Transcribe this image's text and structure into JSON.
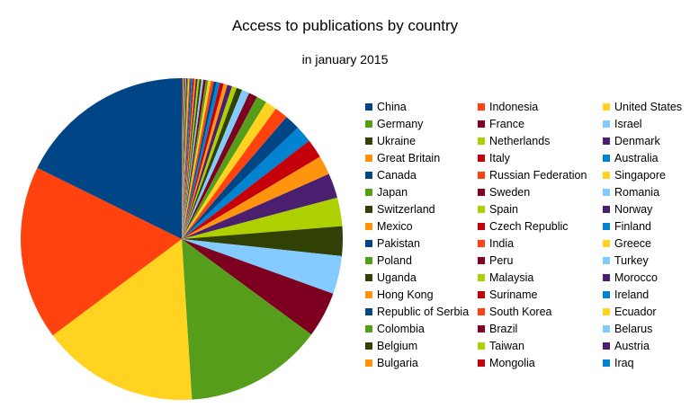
{
  "chart_data": {
    "type": "pie",
    "title": "Access to publications by country",
    "subtitle": "in january 2015",
    "legend_placement": "right",
    "categories": [
      "China",
      "Indonesia",
      "United States",
      "Germany",
      "France",
      "Israel",
      "Ukraine",
      "Netherlands",
      "Denmark",
      "Great Britain",
      "Italy",
      "Australia",
      "Canada",
      "Russian Federation",
      "Singapore",
      "Japan",
      "Sweden",
      "Romania",
      "Switzerland",
      "Spain",
      "Norway",
      "Mexico",
      "Czech Republic",
      "Finland",
      "Pakistan",
      "India",
      "Greece",
      "Poland",
      "Peru",
      "Turkey",
      "Uganda",
      "Malaysia",
      "Morocco",
      "Hong Kong",
      "Suriname",
      "Ireland",
      "Republic of Serbia",
      "South Korea",
      "Ecuador",
      "Colombia",
      "Brazil",
      "Belarus",
      "Belgium",
      "Taiwan",
      "Austria",
      "Bulgaria",
      "Mongolia",
      "Iraq"
    ],
    "values": [
      18.5,
      18.3,
      16.5,
      14.5,
      4.8,
      4.0,
      3.1,
      3.0,
      2.6,
      2.0,
      2.0,
      1.8,
      1.6,
      1.4,
      1.2,
      1.1,
      0.9,
      0.8,
      0.6,
      0.5,
      0.5,
      0.4,
      0.4,
      0.35,
      0.3,
      0.3,
      0.28,
      0.25,
      0.25,
      0.22,
      0.2,
      0.2,
      0.18,
      0.16,
      0.15,
      0.14,
      0.12,
      0.12,
      0.1,
      0.1,
      0.1,
      0.08,
      0.08,
      0.07,
      0.07,
      0.06,
      0.06,
      0.05
    ],
    "colors": [
      "#004586",
      "#ff420e",
      "#ffd320",
      "#579d1c",
      "#7e0021",
      "#83caff",
      "#314004",
      "#aecf00",
      "#4b1f6f",
      "#ff950e",
      "#c5000b",
      "#0084d1"
    ]
  }
}
